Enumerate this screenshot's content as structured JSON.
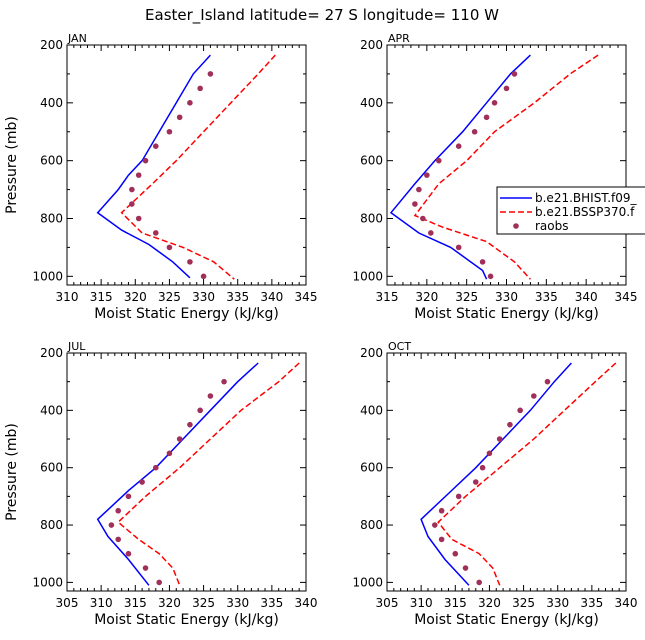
{
  "figure": {
    "title": "Easter_Island   latitude= 27 S longitude= 110 W"
  },
  "legend": {
    "entries": [
      {
        "label": "b.e21.BHIST.f09_",
        "style": "solid",
        "color": "#0000ff"
      },
      {
        "label": "b.e21.BSSP370.f",
        "style": "dashed",
        "color": "#ff0000"
      },
      {
        "label": "raobs",
        "style": "dots",
        "color": "#a0305a"
      }
    ]
  },
  "chart_data": [
    {
      "type": "line",
      "panel": "JAN",
      "xlabel": "Moist Static Energy (kJ/kg)",
      "ylabel": "Pressure (mb)",
      "xlim": [
        310,
        345
      ],
      "ylim": [
        1030,
        200
      ],
      "y_reversed": true,
      "xticks": [
        310,
        315,
        320,
        325,
        330,
        335,
        340,
        345
      ],
      "yticks": [
        200,
        400,
        600,
        800,
        1000
      ],
      "series": [
        {
          "name": "b.e21.BHIST.f09_",
          "color": "#0000ff",
          "style": "solid",
          "points": [
            [
              331,
              235
            ],
            [
              328.5,
              300
            ],
            [
              326,
              400
            ],
            [
              323.5,
              500
            ],
            [
              321,
              600
            ],
            [
              319,
              650
            ],
            [
              317.5,
              700
            ],
            [
              314.5,
              780
            ],
            [
              318,
              840
            ],
            [
              322,
              890
            ],
            [
              325.5,
              950
            ],
            [
              328,
              1005
            ]
          ]
        },
        {
          "name": "b.e21.BSSP370.f",
          "color": "#ff0000",
          "style": "dashed",
          "points": [
            [
              340.5,
              235
            ],
            [
              338,
              300
            ],
            [
              334,
              400
            ],
            [
              330,
              500
            ],
            [
              326,
              600
            ],
            [
              322.5,
              680
            ],
            [
              318,
              780
            ],
            [
              321,
              850
            ],
            [
              327,
              900
            ],
            [
              331.5,
              950
            ],
            [
              334.5,
              1010
            ]
          ]
        },
        {
          "name": "raobs",
          "color": "#a0305a",
          "style": "dots",
          "points": [
            [
              331,
              300
            ],
            [
              329.5,
              350
            ],
            [
              328,
              400
            ],
            [
              326.5,
              450
            ],
            [
              325,
              500
            ],
            [
              323,
              550
            ],
            [
              321.5,
              600
            ],
            [
              320.5,
              650
            ],
            [
              319.5,
              700
            ],
            [
              319.5,
              750
            ],
            [
              320.5,
              800
            ],
            [
              323,
              850
            ],
            [
              325,
              900
            ],
            [
              328,
              950
            ],
            [
              330,
              1000
            ]
          ]
        }
      ]
    },
    {
      "type": "line",
      "panel": "APR",
      "xlabel": "Moist Static Energy (kJ/kg)",
      "ylabel": "",
      "xlim": [
        315,
        345
      ],
      "ylim": [
        1030,
        200
      ],
      "y_reversed": true,
      "xticks": [
        315,
        320,
        325,
        330,
        335,
        340,
        345
      ],
      "yticks": [
        200,
        400,
        600,
        800,
        1000
      ],
      "series": [
        {
          "name": "b.e21.BHIST.f09_",
          "color": "#0000ff",
          "style": "solid",
          "points": [
            [
              333,
              235
            ],
            [
              330.5,
              300
            ],
            [
              327.5,
              400
            ],
            [
              324.5,
              500
            ],
            [
              321,
              600
            ],
            [
              318.5,
              680
            ],
            [
              315.5,
              780
            ],
            [
              319,
              850
            ],
            [
              323,
              900
            ],
            [
              327,
              980
            ],
            [
              327.5,
              1010
            ]
          ]
        },
        {
          "name": "b.e21.BSSP370.f",
          "color": "#ff0000",
          "style": "dashed",
          "points": [
            [
              341.5,
              235
            ],
            [
              338,
              300
            ],
            [
              333.5,
              400
            ],
            [
              328.5,
              500
            ],
            [
              325,
              600
            ],
            [
              321.5,
              680
            ],
            [
              318.5,
              790
            ],
            [
              322,
              830
            ],
            [
              327.5,
              880
            ],
            [
              331,
              950
            ],
            [
              333,
              1010
            ]
          ]
        },
        {
          "name": "raobs",
          "color": "#a0305a",
          "style": "dots",
          "points": [
            [
              331,
              300
            ],
            [
              330,
              350
            ],
            [
              328.5,
              400
            ],
            [
              327.5,
              450
            ],
            [
              326,
              500
            ],
            [
              324,
              550
            ],
            [
              321.5,
              600
            ],
            [
              320,
              650
            ],
            [
              319,
              700
            ],
            [
              318.5,
              750
            ],
            [
              319.5,
              800
            ],
            [
              320.5,
              850
            ],
            [
              324,
              900
            ],
            [
              327,
              950
            ],
            [
              328,
              1000
            ]
          ]
        }
      ]
    },
    {
      "type": "line",
      "panel": "JUL",
      "xlabel": "Moist Static Energy (kJ/kg)",
      "ylabel": "Pressure (mb)",
      "xlim": [
        305,
        340
      ],
      "ylim": [
        1030,
        200
      ],
      "y_reversed": true,
      "xticks": [
        305,
        310,
        315,
        320,
        325,
        330,
        335,
        340
      ],
      "yticks": [
        200,
        400,
        600,
        800,
        1000
      ],
      "series": [
        {
          "name": "b.e21.BHIST.f09_",
          "color": "#0000ff",
          "style": "solid",
          "points": [
            [
              333,
              235
            ],
            [
              330,
              300
            ],
            [
              326,
              400
            ],
            [
              322,
              500
            ],
            [
              318,
              600
            ],
            [
              314,
              680
            ],
            [
              309.5,
              780
            ],
            [
              311,
              840
            ],
            [
              314,
              920
            ],
            [
              317,
              1010
            ]
          ]
        },
        {
          "name": "b.e21.BSSP370.f",
          "color": "#ff0000",
          "style": "dashed",
          "points": [
            [
              339,
              235
            ],
            [
              336,
              300
            ],
            [
              330.5,
              400
            ],
            [
              326,
              500
            ],
            [
              321.5,
              600
            ],
            [
              316.5,
              700
            ],
            [
              312.5,
              790
            ],
            [
              315.5,
              850
            ],
            [
              318.5,
              900
            ],
            [
              320.5,
              950
            ],
            [
              321.5,
              1010
            ]
          ]
        },
        {
          "name": "raobs",
          "color": "#a0305a",
          "style": "dots",
          "points": [
            [
              328,
              300
            ],
            [
              326,
              350
            ],
            [
              324.5,
              400
            ],
            [
              323,
              450
            ],
            [
              321.5,
              500
            ],
            [
              320,
              550
            ],
            [
              318,
              600
            ],
            [
              316,
              650
            ],
            [
              314,
              700
            ],
            [
              312.5,
              750
            ],
            [
              311.5,
              800
            ],
            [
              312.5,
              850
            ],
            [
              314,
              900
            ],
            [
              316.5,
              950
            ],
            [
              318.5,
              1000
            ]
          ]
        }
      ]
    },
    {
      "type": "line",
      "panel": "OCT",
      "xlabel": "Moist Static Energy (kJ/kg)",
      "ylabel": "",
      "xlim": [
        305,
        340
      ],
      "ylim": [
        1030,
        200
      ],
      "y_reversed": true,
      "xticks": [
        305,
        310,
        315,
        320,
        325,
        330,
        335,
        340
      ],
      "yticks": [
        200,
        400,
        600,
        800,
        1000
      ],
      "series": [
        {
          "name": "b.e21.BHIST.f09_",
          "color": "#0000ff",
          "style": "solid",
          "points": [
            [
              332,
              235
            ],
            [
              329.5,
              300
            ],
            [
              326,
              400
            ],
            [
              322,
              500
            ],
            [
              318,
              600
            ],
            [
              314,
              690
            ],
            [
              310,
              780
            ],
            [
              311,
              840
            ],
            [
              313.5,
              920
            ],
            [
              317,
              1010
            ]
          ]
        },
        {
          "name": "b.e21.BSSP370.f",
          "color": "#ff0000",
          "style": "dashed",
          "points": [
            [
              338.5,
              235
            ],
            [
              335.5,
              300
            ],
            [
              331,
              400
            ],
            [
              326.5,
              500
            ],
            [
              321.5,
              600
            ],
            [
              316.5,
              700
            ],
            [
              312.5,
              790
            ],
            [
              314.5,
              850
            ],
            [
              318.5,
              900
            ],
            [
              320.5,
              950
            ],
            [
              321.5,
              1010
            ]
          ]
        },
        {
          "name": "raobs",
          "color": "#a0305a",
          "style": "dots",
          "points": [
            [
              328.5,
              300
            ],
            [
              326.5,
              350
            ],
            [
              324.5,
              400
            ],
            [
              323,
              450
            ],
            [
              321.5,
              500
            ],
            [
              320,
              550
            ],
            [
              319,
              600
            ],
            [
              318,
              650
            ],
            [
              315.5,
              700
            ],
            [
              313,
              750
            ],
            [
              312,
              800
            ],
            [
              313,
              850
            ],
            [
              315,
              900
            ],
            [
              316.5,
              950
            ],
            [
              318.5,
              1000
            ]
          ]
        }
      ]
    }
  ]
}
